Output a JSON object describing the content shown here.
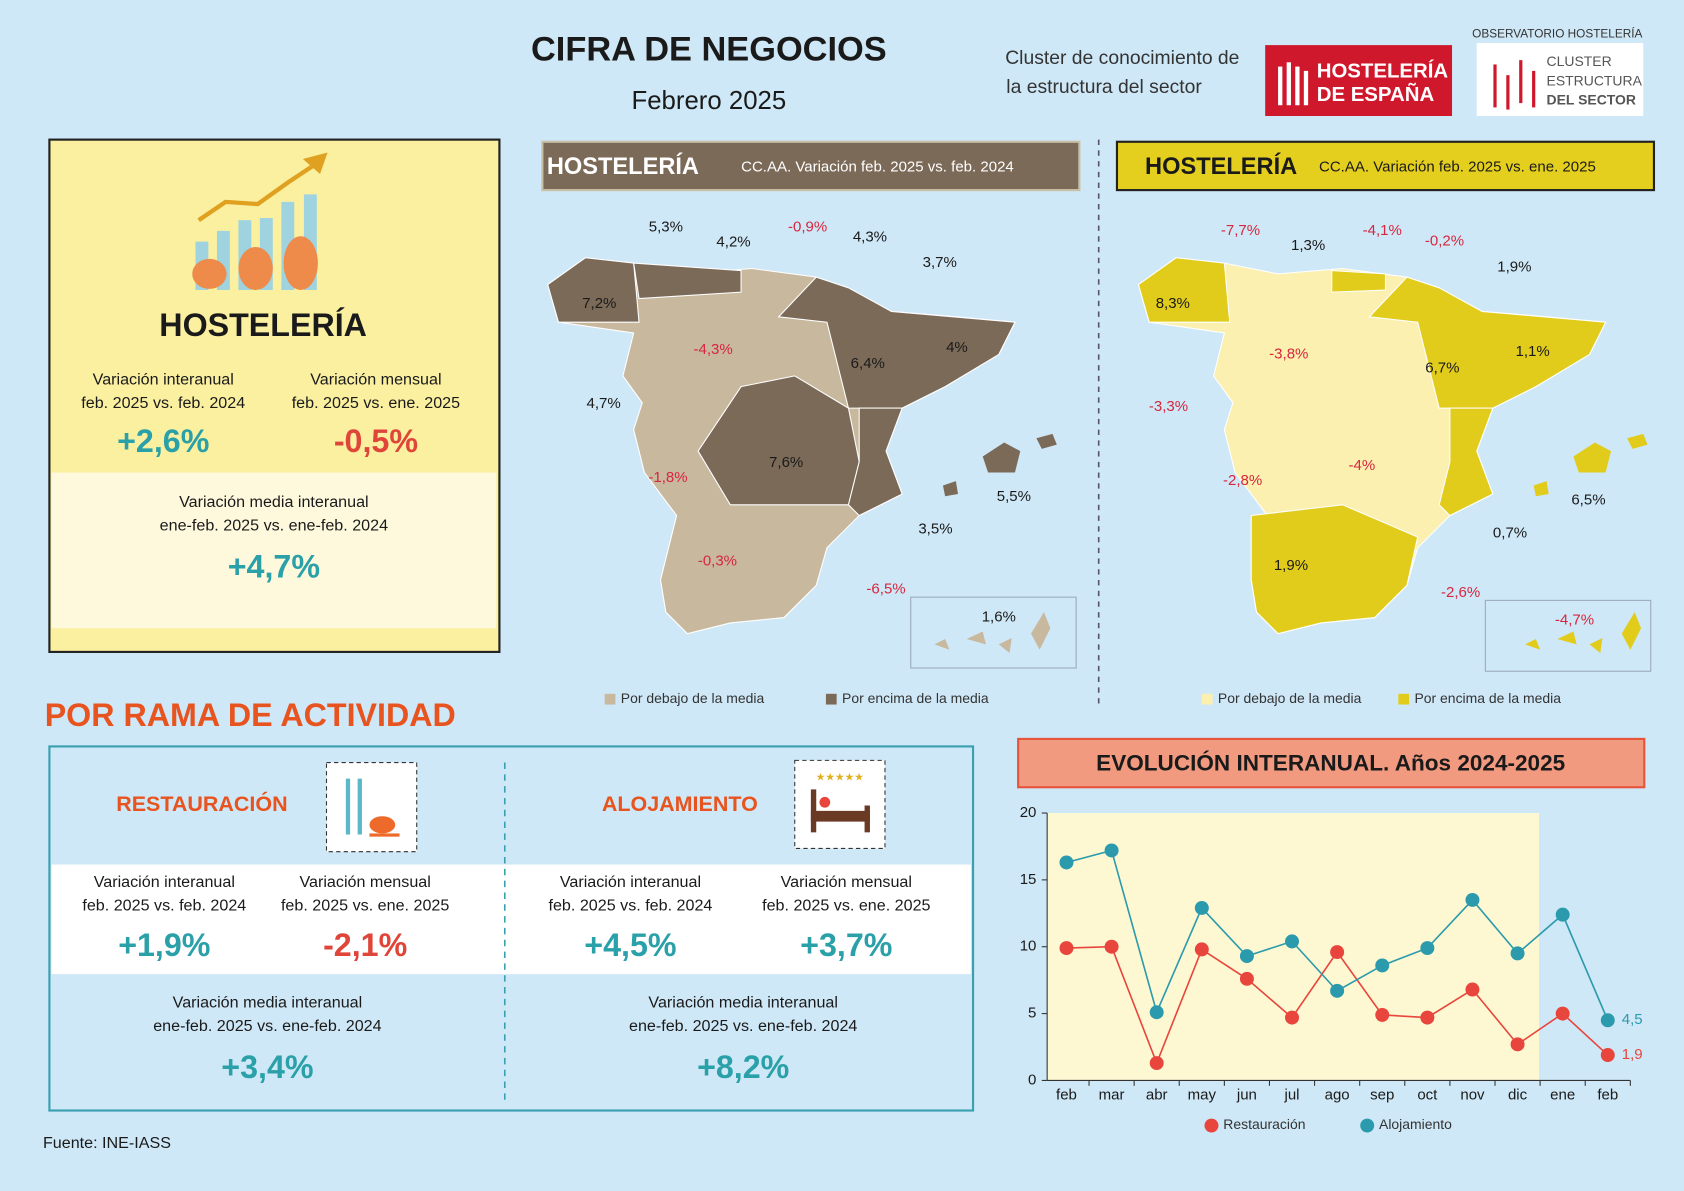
{
  "header": {
    "title": "CIFRA DE NEGOCIOS",
    "subtitle": "Febrero 2025",
    "cluster": [
      "Cluster de conocimiento de",
      "la estructura del sector"
    ],
    "logo1": [
      "HOSTELERÍA",
      "DE ESPAÑA"
    ],
    "logo2_caption": "OBSERVATORIO HOSTELERÍA",
    "logo2": [
      "CLUSTER",
      "ESTRUCTURA",
      "DEL SECTOR"
    ]
  },
  "summary": {
    "title": "HOSTELERÍA",
    "interannual": {
      "label": [
        "Variación interanual",
        "feb. 2025 vs. feb. 2024"
      ],
      "value": "+2,6%"
    },
    "monthly": {
      "label": [
        "Variación mensual",
        "feb. 2025 vs. ene. 2025"
      ],
      "value": "-0,5%"
    },
    "average": {
      "label": [
        "Variación media interanual",
        "ene-feb. 2025 vs. ene-feb. 2024"
      ],
      "value": "+4,7%"
    }
  },
  "maps": [
    {
      "title": "HOSTELERÍA",
      "subtitle": "CC.AA. Variación feb. 2025 vs. feb. 2024",
      "labels": [
        "5,3%",
        "4,2%",
        "-0,9%",
        "4,3%",
        "3,7%",
        "7,2%",
        "-4,3%",
        "6,4%",
        "4%",
        "4,7%",
        "7,6%",
        "-1,8%",
        "5,5%",
        "3,5%",
        "-0,3%",
        "-6,5%",
        "1,6%"
      ],
      "legend": [
        "Por debajo de la media",
        "Por encima de la media"
      ]
    },
    {
      "title": "HOSTELERÍA",
      "subtitle": "CC.AA. Variación feb. 2025 vs. ene. 2025",
      "labels": [
        "-7,7%",
        "1,3%",
        "-4,1%",
        "-0,2%",
        "1,9%",
        "8,3%",
        "-3,8%",
        "6,7%",
        "1,1%",
        "-3,3%",
        "-4%",
        "-2,8%",
        "6,5%",
        "0,7%",
        "1,9%",
        "-2,6%",
        "-4,7%"
      ],
      "legend": [
        "Por debajo de la media",
        "Por encima de la media"
      ]
    }
  ],
  "section_title": "POR RAMA DE ACTIVIDAD",
  "branches": [
    {
      "name": "RESTAURACIÓN",
      "interannual": {
        "label": [
          "Variación interanual",
          "feb. 2025 vs. feb. 2024"
        ],
        "value": "+1,9%"
      },
      "monthly": {
        "label": [
          "Variación mensual",
          "feb. 2025 vs. ene. 2025"
        ],
        "value": "-2,1%"
      },
      "average": {
        "label": [
          "Variación media interanual",
          "ene-feb. 2025 vs. ene-feb. 2024"
        ],
        "value": "+3,4%"
      }
    },
    {
      "name": "ALOJAMIENTO",
      "interannual": {
        "label": [
          "Variación interanual",
          "feb. 2025 vs. feb. 2024"
        ],
        "value": "+4,5%"
      },
      "monthly": {
        "label": [
          "Variación mensual",
          "feb. 2025 vs. ene. 2025"
        ],
        "value": "+3,7%"
      },
      "average": {
        "label": [
          "Variación media interanual",
          "ene-feb. 2025 vs. ene-feb. 2024"
        ],
        "value": "+8,2%"
      }
    }
  ],
  "chart_data": {
    "type": "line",
    "title": "EVOLUCIÓN INTERANUAL. Años 2024-2025",
    "categories": [
      "feb",
      "mar",
      "abr",
      "may",
      "jun",
      "jul",
      "ago",
      "sep",
      "oct",
      "nov",
      "dic",
      "ene",
      "feb"
    ],
    "series": [
      {
        "name": "Restauración",
        "color": "#e8453c",
        "values": [
          9.9,
          10.0,
          1.3,
          9.8,
          7.6,
          4.7,
          9.6,
          4.9,
          4.7,
          6.8,
          2.7,
          5.0,
          1.9
        ],
        "value_labels": [
          null,
          null,
          null,
          null,
          null,
          null,
          null,
          null,
          null,
          null,
          null,
          null,
          "1,9"
        ]
      },
      {
        "name": "Alojamiento",
        "color": "#2a9aac",
        "values": [
          16.3,
          17.2,
          5.1,
          12.9,
          9.3,
          10.4,
          6.7,
          8.6,
          9.9,
          13.5,
          9.5,
          12.4,
          4.5
        ],
        "value_labels": [
          null,
          null,
          null,
          null,
          null,
          null,
          null,
          null,
          null,
          null,
          null,
          null,
          "4,5"
        ]
      }
    ],
    "ylim": [
      0,
      20
    ],
    "yticks": [
      0,
      5,
      10,
      15,
      20
    ]
  },
  "source": "Fuente: INE-IASS"
}
